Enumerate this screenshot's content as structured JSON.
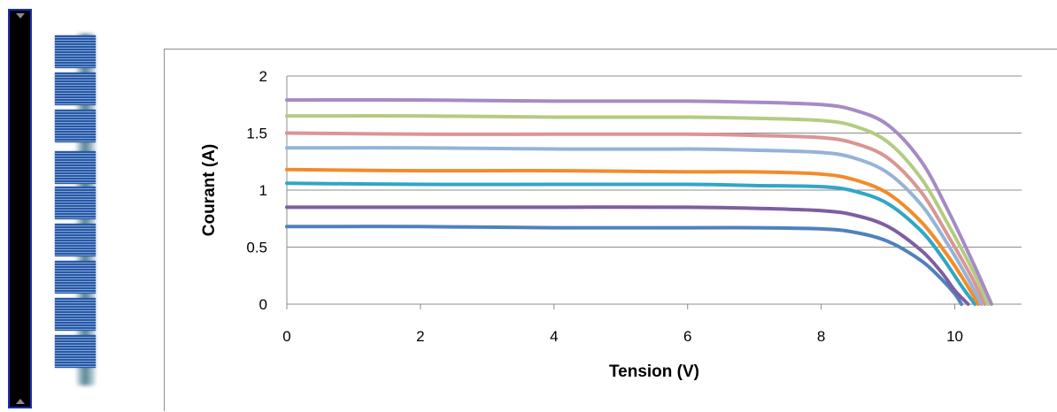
{
  "chart_data": {
    "type": "line",
    "title": "",
    "xlabel": "Tension (V)",
    "ylabel": "Courant (A)",
    "xlim": [
      0,
      11
    ],
    "ylim": [
      0,
      2
    ],
    "xticks": [
      "0",
      "2",
      "4",
      "6",
      "8",
      "10"
    ],
    "yticks": [
      "0",
      "0.5",
      "1",
      "1.5",
      "2"
    ],
    "grid": "horizontal",
    "legend": "none",
    "series": [
      {
        "color": "#4f81bd",
        "x": [
          0,
          2,
          4,
          6,
          7,
          8,
          8.5,
          9,
          9.5,
          9.8,
          10,
          10.1
        ],
        "y": [
          0.68,
          0.68,
          0.67,
          0.67,
          0.67,
          0.66,
          0.63,
          0.55,
          0.38,
          0.22,
          0.09,
          0
        ]
      },
      {
        "color": "#7e5ea2",
        "x": [
          0,
          2,
          4,
          6,
          7,
          8,
          8.5,
          9,
          9.5,
          9.8,
          10,
          10.2
        ],
        "y": [
          0.85,
          0.85,
          0.85,
          0.85,
          0.84,
          0.82,
          0.78,
          0.68,
          0.47,
          0.28,
          0.12,
          0
        ]
      },
      {
        "color": "#31a6c4",
        "x": [
          0,
          2,
          4,
          6,
          7,
          8,
          8.5,
          9,
          9.5,
          9.8,
          10.1,
          10.3
        ],
        "y": [
          1.06,
          1.05,
          1.05,
          1.05,
          1.04,
          1.03,
          0.99,
          0.88,
          0.64,
          0.42,
          0.16,
          0
        ]
      },
      {
        "color": "#f28c28",
        "x": [
          0,
          2,
          4,
          6,
          7,
          8,
          8.5,
          9,
          9.5,
          9.9,
          10.2,
          10.35
        ],
        "y": [
          1.18,
          1.17,
          1.17,
          1.16,
          1.16,
          1.14,
          1.09,
          0.97,
          0.72,
          0.42,
          0.15,
          0
        ]
      },
      {
        "color": "#95b3d7",
        "x": [
          0,
          2,
          4,
          6,
          7,
          8,
          8.5,
          9,
          9.5,
          9.9,
          10.2,
          10.4
        ],
        "y": [
          1.37,
          1.37,
          1.36,
          1.36,
          1.35,
          1.33,
          1.28,
          1.15,
          0.87,
          0.52,
          0.22,
          0
        ]
      },
      {
        "color": "#d99694",
        "x": [
          0,
          2,
          4,
          6,
          7,
          8,
          8.5,
          9,
          9.5,
          9.9,
          10.25,
          10.45
        ],
        "y": [
          1.5,
          1.49,
          1.49,
          1.49,
          1.48,
          1.46,
          1.41,
          1.28,
          0.98,
          0.6,
          0.24,
          0
        ]
      },
      {
        "color": "#b3cc82",
        "x": [
          0,
          2,
          4,
          6,
          7,
          8,
          8.5,
          9,
          9.5,
          9.9,
          10.3,
          10.5
        ],
        "y": [
          1.65,
          1.65,
          1.64,
          1.64,
          1.63,
          1.61,
          1.56,
          1.42,
          1.1,
          0.7,
          0.26,
          0
        ]
      },
      {
        "color": "#a58bc4",
        "x": [
          0,
          2,
          4,
          6,
          7,
          8,
          8.5,
          9,
          9.5,
          9.9,
          10.3,
          10.55
        ],
        "y": [
          1.79,
          1.79,
          1.78,
          1.78,
          1.77,
          1.75,
          1.7,
          1.57,
          1.25,
          0.82,
          0.33,
          0
        ]
      }
    ]
  }
}
